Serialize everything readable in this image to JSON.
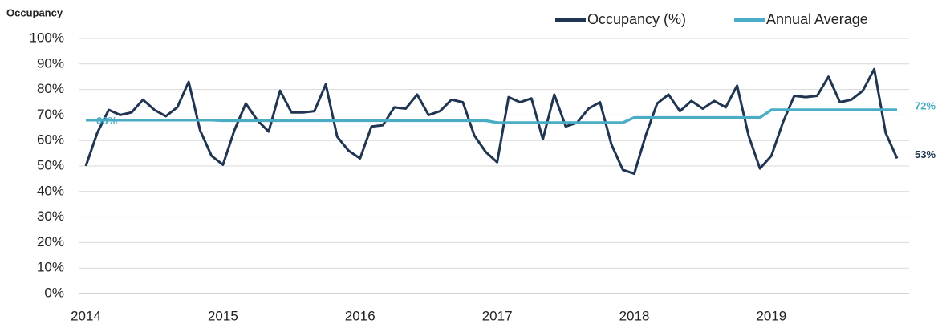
{
  "chart_data": {
    "type": "line",
    "y_axis_label": "Occupancy",
    "categories": [
      "2014",
      null,
      null,
      null,
      null,
      null,
      null,
      null,
      null,
      null,
      null,
      null,
      "2015",
      null,
      null,
      null,
      null,
      null,
      null,
      null,
      null,
      null,
      null,
      null,
      "2016",
      null,
      null,
      null,
      null,
      null,
      null,
      null,
      null,
      null,
      null,
      null,
      "2017",
      null,
      null,
      null,
      null,
      null,
      null,
      null,
      null,
      null,
      null,
      null,
      "2018",
      null,
      null,
      null,
      null,
      null,
      null,
      null,
      null,
      null,
      null,
      null,
      "2019",
      null,
      null,
      null,
      null,
      null,
      null,
      null,
      null,
      null,
      null,
      null
    ],
    "series": [
      {
        "name": "Occupancy (%)",
        "color": "#1f3552",
        "values": [
          50,
          63,
          72,
          70,
          71,
          76,
          72,
          69.5,
          73,
          83,
          64,
          54,
          50.5,
          64,
          74.5,
          68,
          63.5,
          79.5,
          71,
          71,
          71.5,
          82,
          61.5,
          56,
          53,
          65.5,
          66,
          73,
          72.5,
          78,
          70,
          71.5,
          76,
          75,
          62,
          55.5,
          51.5,
          77,
          75,
          76.5,
          60.5,
          78,
          65.5,
          67,
          72.5,
          75,
          58.5,
          48.5,
          47,
          62,
          74.5,
          78,
          71.5,
          75.5,
          72.5,
          75.5,
          73,
          81.5,
          62,
          49,
          54,
          67,
          77.5,
          77,
          77.5,
          85,
          75,
          76,
          79.5,
          88,
          63,
          53
        ],
        "value_labels": [
          null,
          null,
          null,
          null,
          null,
          null,
          null,
          null,
          null,
          null,
          null,
          null,
          null,
          null,
          null,
          null,
          null,
          null,
          null,
          null,
          null,
          null,
          null,
          null,
          null,
          null,
          null,
          null,
          null,
          null,
          null,
          null,
          null,
          null,
          null,
          null,
          null,
          null,
          null,
          null,
          null,
          null,
          null,
          null,
          null,
          null,
          null,
          null,
          null,
          null,
          null,
          null,
          null,
          null,
          null,
          null,
          null,
          null,
          null,
          null,
          null,
          null,
          null,
          null,
          null,
          null,
          null,
          null,
          null,
          null,
          null,
          "53%"
        ]
      },
      {
        "name": "Annual Average",
        "color": "#4bacc6",
        "values": [
          68,
          68,
          68,
          68,
          68,
          68,
          68,
          68,
          68,
          68,
          68,
          68,
          67.8,
          67.8,
          67.8,
          67.8,
          67.8,
          67.8,
          67.8,
          67.8,
          67.8,
          67.8,
          67.8,
          67.8,
          67.8,
          67.8,
          67.8,
          67.8,
          67.8,
          67.8,
          67.8,
          67.8,
          67.8,
          67.8,
          67.8,
          67.8,
          67,
          67,
          67,
          67,
          67,
          67,
          67,
          67,
          67,
          67,
          67,
          67,
          69,
          69,
          69,
          69,
          69,
          69,
          69,
          69,
          69,
          69,
          69,
          69,
          72,
          72,
          72,
          72,
          72,
          72,
          72,
          72,
          72,
          72,
          72,
          72
        ],
        "value_labels": [
          "68%",
          null,
          null,
          null,
          null,
          null,
          null,
          null,
          null,
          null,
          null,
          null,
          null,
          null,
          null,
          null,
          null,
          null,
          null,
          null,
          null,
          null,
          null,
          null,
          null,
          null,
          null,
          null,
          null,
          null,
          null,
          null,
          null,
          null,
          null,
          null,
          null,
          null,
          null,
          null,
          null,
          null,
          null,
          null,
          null,
          null,
          null,
          null,
          null,
          null,
          null,
          null,
          null,
          null,
          null,
          null,
          null,
          null,
          null,
          null,
          null,
          null,
          null,
          null,
          null,
          null,
          null,
          null,
          null,
          null,
          null,
          "72%"
        ]
      }
    ],
    "ylim": [
      0,
      100
    ],
    "yticks": [
      {
        "value": 0,
        "label": "0%"
      },
      {
        "value": 10,
        "label": "10%"
      },
      {
        "value": 20,
        "label": "20%"
      },
      {
        "value": 30,
        "label": "30%"
      },
      {
        "value": 40,
        "label": "40%"
      },
      {
        "value": 50,
        "label": "50%"
      },
      {
        "value": 60,
        "label": "60%"
      },
      {
        "value": 70,
        "label": "70%"
      },
      {
        "value": 80,
        "label": "80%"
      },
      {
        "value": 90,
        "label": "90%"
      },
      {
        "value": 100,
        "label": "100%"
      }
    ],
    "grid": true,
    "legend": "top-right"
  }
}
